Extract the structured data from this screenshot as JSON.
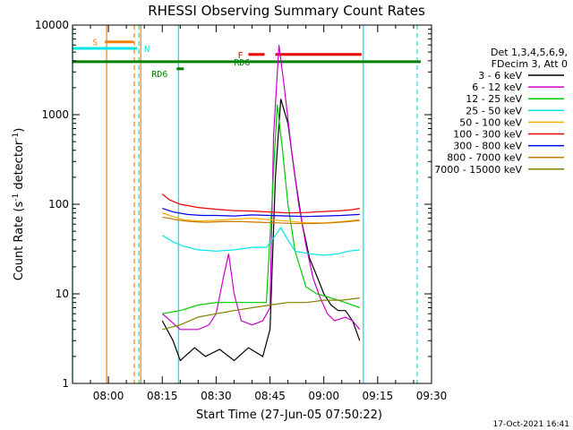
{
  "chart_data": {
    "type": "line",
    "title": "RHESSI Observing Summary Count Rates",
    "xlabel": "Start Time (27-Jun-05 07:50:22)",
    "ylabel_main": "Count Rate (s",
    "ylabel_sup": "-1",
    "ylabel_tail": " detector",
    "ylabel_end": ")",
    "y_scale": "log",
    "ylim": [
      1,
      10000
    ],
    "xlim_min": [
      -10,
      90
    ],
    "x_ticks": [
      {
        "t": 0,
        "label": "08:00"
      },
      {
        "t": 15,
        "label": "08:15"
      },
      {
        "t": 30,
        "label": "08:30"
      },
      {
        "t": 45,
        "label": "08:45"
      },
      {
        "t": 60,
        "label": "09:00"
      },
      {
        "t": 75,
        "label": "09:15"
      },
      {
        "t": 90,
        "label": "09:30"
      }
    ],
    "y_ticks": [
      {
        "v": 1,
        "label": "1"
      },
      {
        "v": 10,
        "label": "10"
      },
      {
        "v": 100,
        "label": "100"
      },
      {
        "v": 1000,
        "label": "1000"
      },
      {
        "v": 10000,
        "label": "10000"
      }
    ],
    "legend_header": [
      "Det 1,3,4,5,6,9,",
      "FDecim 3, Att 0"
    ],
    "series": [
      {
        "name": "3 - 6 keV",
        "color": "#000000",
        "points": [
          [
            15,
            5
          ],
          [
            18,
            3
          ],
          [
            20,
            1.8
          ],
          [
            24,
            2.5
          ],
          [
            27,
            2
          ],
          [
            31,
            2.4
          ],
          [
            35,
            1.8
          ],
          [
            39,
            2.5
          ],
          [
            43,
            2
          ],
          [
            45,
            4
          ],
          [
            46.5,
            200
          ],
          [
            48,
            1500
          ],
          [
            50,
            800
          ],
          [
            52,
            200
          ],
          [
            54,
            60
          ],
          [
            56,
            25
          ],
          [
            58,
            16
          ],
          [
            60,
            10
          ],
          [
            62,
            7.5
          ],
          [
            64,
            6.5
          ],
          [
            66,
            6.5
          ],
          [
            68,
            5
          ],
          [
            70,
            3
          ]
        ]
      },
      {
        "name": "6 - 12 keV",
        "color": "#cc00cc",
        "points": [
          [
            15,
            6
          ],
          [
            20,
            4
          ],
          [
            25,
            4
          ],
          [
            28,
            4.5
          ],
          [
            30,
            6
          ],
          [
            32,
            15
          ],
          [
            33.5,
            28
          ],
          [
            35,
            10
          ],
          [
            37,
            5
          ],
          [
            40,
            4.5
          ],
          [
            43,
            5
          ],
          [
            45,
            7
          ],
          [
            46,
            600
          ],
          [
            47.5,
            6000
          ],
          [
            49,
            2000
          ],
          [
            51,
            400
          ],
          [
            53,
            100
          ],
          [
            55,
            35
          ],
          [
            57,
            15
          ],
          [
            59,
            9
          ],
          [
            61,
            6
          ],
          [
            63,
            5
          ],
          [
            66,
            5.5
          ],
          [
            68,
            5
          ],
          [
            70,
            4
          ]
        ]
      },
      {
        "name": "12 - 25 keV",
        "color": "#00cc00",
        "points": [
          [
            15,
            6
          ],
          [
            20,
            6.5
          ],
          [
            25,
            7.5
          ],
          [
            30,
            8
          ],
          [
            35,
            8
          ],
          [
            40,
            8
          ],
          [
            44,
            8
          ],
          [
            45.5,
            100
          ],
          [
            47,
            1300
          ],
          [
            48.5,
            400
          ],
          [
            50,
            100
          ],
          [
            52,
            30
          ],
          [
            55,
            12
          ],
          [
            58,
            10
          ],
          [
            62,
            9
          ],
          [
            66,
            8
          ],
          [
            70,
            7
          ]
        ]
      },
      {
        "name": "25 - 50 keV",
        "color": "#00e5e5",
        "points": [
          [
            15,
            45
          ],
          [
            18,
            38
          ],
          [
            21,
            34
          ],
          [
            25,
            31
          ],
          [
            30,
            30
          ],
          [
            35,
            31
          ],
          [
            40,
            33
          ],
          [
            44,
            33
          ],
          [
            46,
            42
          ],
          [
            48,
            55
          ],
          [
            50,
            40
          ],
          [
            52,
            30
          ],
          [
            56,
            28
          ],
          [
            60,
            27
          ],
          [
            64,
            28
          ],
          [
            67,
            30
          ],
          [
            70,
            31
          ]
        ]
      },
      {
        "name": "50 - 100 keV",
        "color": "#ffaa00",
        "points": [
          [
            15,
            80
          ],
          [
            18,
            73
          ],
          [
            21,
            67
          ],
          [
            25,
            65
          ],
          [
            30,
            66
          ],
          [
            35,
            68
          ],
          [
            40,
            70
          ],
          [
            45,
            67
          ],
          [
            50,
            65
          ],
          [
            55,
            62
          ],
          [
            60,
            62
          ],
          [
            65,
            64
          ],
          [
            70,
            67
          ]
        ]
      },
      {
        "name": "100 - 300 keV",
        "color": "#ee0000",
        "points": [
          [
            15,
            130
          ],
          [
            17,
            112
          ],
          [
            20,
            100
          ],
          [
            25,
            92
          ],
          [
            30,
            88
          ],
          [
            35,
            85
          ],
          [
            40,
            84
          ],
          [
            45,
            82
          ],
          [
            50,
            80
          ],
          [
            55,
            81
          ],
          [
            60,
            83
          ],
          [
            65,
            85
          ],
          [
            68,
            87
          ],
          [
            70,
            90
          ]
        ]
      },
      {
        "name": "300 - 800 keV",
        "color": "#0000ee",
        "points": [
          [
            15,
            90
          ],
          [
            18,
            82
          ],
          [
            22,
            77
          ],
          [
            26,
            75
          ],
          [
            30,
            75
          ],
          [
            35,
            74
          ],
          [
            40,
            76
          ],
          [
            45,
            75
          ],
          [
            50,
            74
          ],
          [
            55,
            73
          ],
          [
            60,
            74
          ],
          [
            65,
            75
          ],
          [
            70,
            77
          ]
        ]
      },
      {
        "name": "800 - 7000 keV",
        "color": "#cc7700",
        "points": [
          [
            15,
            72
          ],
          [
            19,
            67
          ],
          [
            23,
            64
          ],
          [
            27,
            63
          ],
          [
            32,
            64
          ],
          [
            37,
            64
          ],
          [
            42,
            63
          ],
          [
            47,
            62
          ],
          [
            52,
            61
          ],
          [
            57,
            61
          ],
          [
            62,
            62
          ],
          [
            67,
            64
          ],
          [
            70,
            66
          ]
        ]
      },
      {
        "name": "7000 - 15000 keV",
        "color": "#808000",
        "points": [
          [
            15,
            4
          ],
          [
            20,
            4.5
          ],
          [
            25,
            5.5
          ],
          [
            30,
            6
          ],
          [
            35,
            6.5
          ],
          [
            40,
            7
          ],
          [
            45,
            7.5
          ],
          [
            50,
            8
          ],
          [
            55,
            8
          ],
          [
            60,
            8.5
          ],
          [
            65,
            8.5
          ],
          [
            70,
            9
          ]
        ]
      }
    ],
    "flags": [
      {
        "label": "S",
        "color": "#ff8000",
        "t": [
          -1,
          7
        ],
        "y": 6500
      },
      {
        "label": "N",
        "color": "#00e5e5",
        "t": [
          -10,
          8
        ],
        "y": 5500
      },
      {
        "label": "F",
        "color": "#ee0000",
        "t": [
          39,
          43.5
        ],
        "y": 4700
      },
      {
        "label": "F",
        "color": "#ee0000",
        "t": [
          46.5,
          70.5
        ],
        "y": 4700
      },
      {
        "label": "RD6",
        "color": "#008000",
        "t": [
          -10,
          87
        ],
        "y": 3900
      },
      {
        "label": "RD6",
        "color": "#008000",
        "t": [
          19,
          21
        ],
        "y": 3250
      }
    ],
    "markers": [
      {
        "t": -10,
        "color": "#00e5e5",
        "style": "solid"
      },
      {
        "t": -0.5,
        "color": "#ff8000",
        "style": "solid"
      },
      {
        "t": 7.2,
        "color": "#ff8000",
        "style": "dashed"
      },
      {
        "t": 8.5,
        "color": "#00e5e5",
        "style": "dashed"
      },
      {
        "t": 9.0,
        "color": "#ff8000",
        "style": "solid"
      },
      {
        "t": 19.5,
        "color": "#00e5e5",
        "style": "solid"
      },
      {
        "t": 71,
        "color": "#00e5e5",
        "style": "solid"
      },
      {
        "t": 86,
        "color": "#00e5e5",
        "style": "dashed"
      }
    ],
    "timestamp": "17-Oct-2021 16:41"
  }
}
